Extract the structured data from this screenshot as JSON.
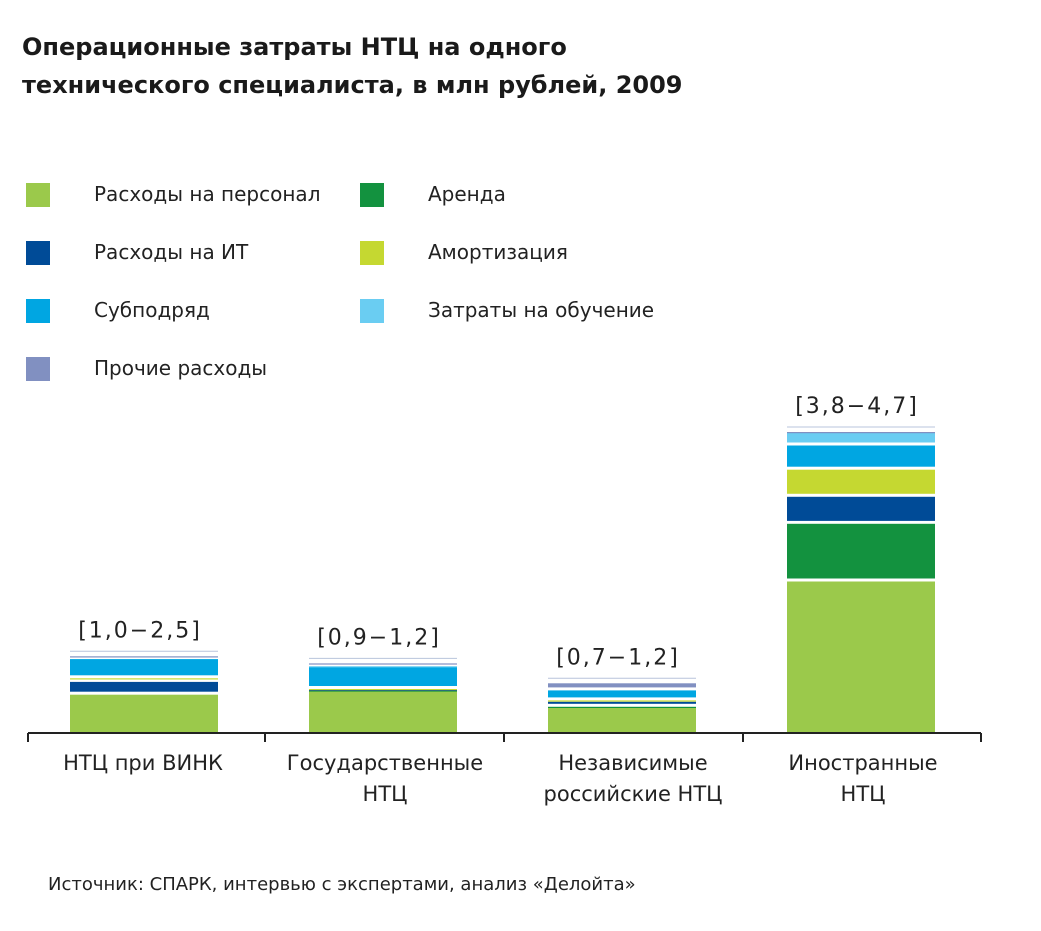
{
  "title_lines": [
    "Операционные затраты НТЦ на одного",
    "технического специалиста, в млн рублей, 2009"
  ],
  "legend": [
    {
      "label": "Расходы на персонал",
      "color": "#9bc94b"
    },
    {
      "label": "Аренда",
      "color": "#13923f"
    },
    {
      "label": "Расходы на ИТ",
      "color": "#004b97"
    },
    {
      "label": "Амортизация",
      "color": "#c5d831"
    },
    {
      "label": "Субподряд",
      "color": "#00a6e2"
    },
    {
      "label": "Затраты на обучение",
      "color": "#6acdf2"
    },
    {
      "label": "Прочие расходы",
      "color": "#8190c1"
    }
  ],
  "source": "Источник: СПАРК, интервью с экспертами, анализ «Делойта»",
  "chart_data": {
    "type": "bar",
    "stacked": true,
    "y_axis_shown": false,
    "categories": [
      [
        "НТЦ при ВИНК"
      ],
      [
        "Государственные",
        "НТЦ"
      ],
      [
        "Независимые",
        "российские НТЦ"
      ],
      [
        "Иностранные",
        "НТЦ"
      ]
    ],
    "range_labels": [
      "[1,0−2,5]",
      "[0,9−1,2]",
      "[0,7−1,2]",
      "[3,8−4,7]"
    ],
    "series": [
      {
        "name": "Расходы на персонал",
        "color": "#9bc94b",
        "values": [
          0.58,
          0.63,
          0.4,
          2.17
        ]
      },
      {
        "name": "Аренда",
        "color": "#13923f",
        "values": [
          0.0,
          0.01,
          0.01,
          0.81
        ]
      },
      {
        "name": "Расходы на ИТ",
        "color": "#004b97",
        "values": [
          0.18,
          0.01,
          0.07,
          0.38
        ]
      },
      {
        "name": "Амортизация",
        "color": "#c5d831",
        "values": [
          0.05,
          0.01,
          0.02,
          0.38
        ]
      },
      {
        "name": "Субподряд",
        "color": "#00a6e2",
        "values": [
          0.27,
          0.31,
          0.14,
          0.34
        ]
      },
      {
        "name": "Затраты на обучение",
        "color": "#6acdf2",
        "values": [
          0.0,
          0.01,
          0.0,
          0.18
        ]
      },
      {
        "name": "Прочие расходы",
        "color": "#8190c1",
        "values": [
          0.04,
          0.04,
          0.1,
          0.01
        ]
      }
    ]
  }
}
